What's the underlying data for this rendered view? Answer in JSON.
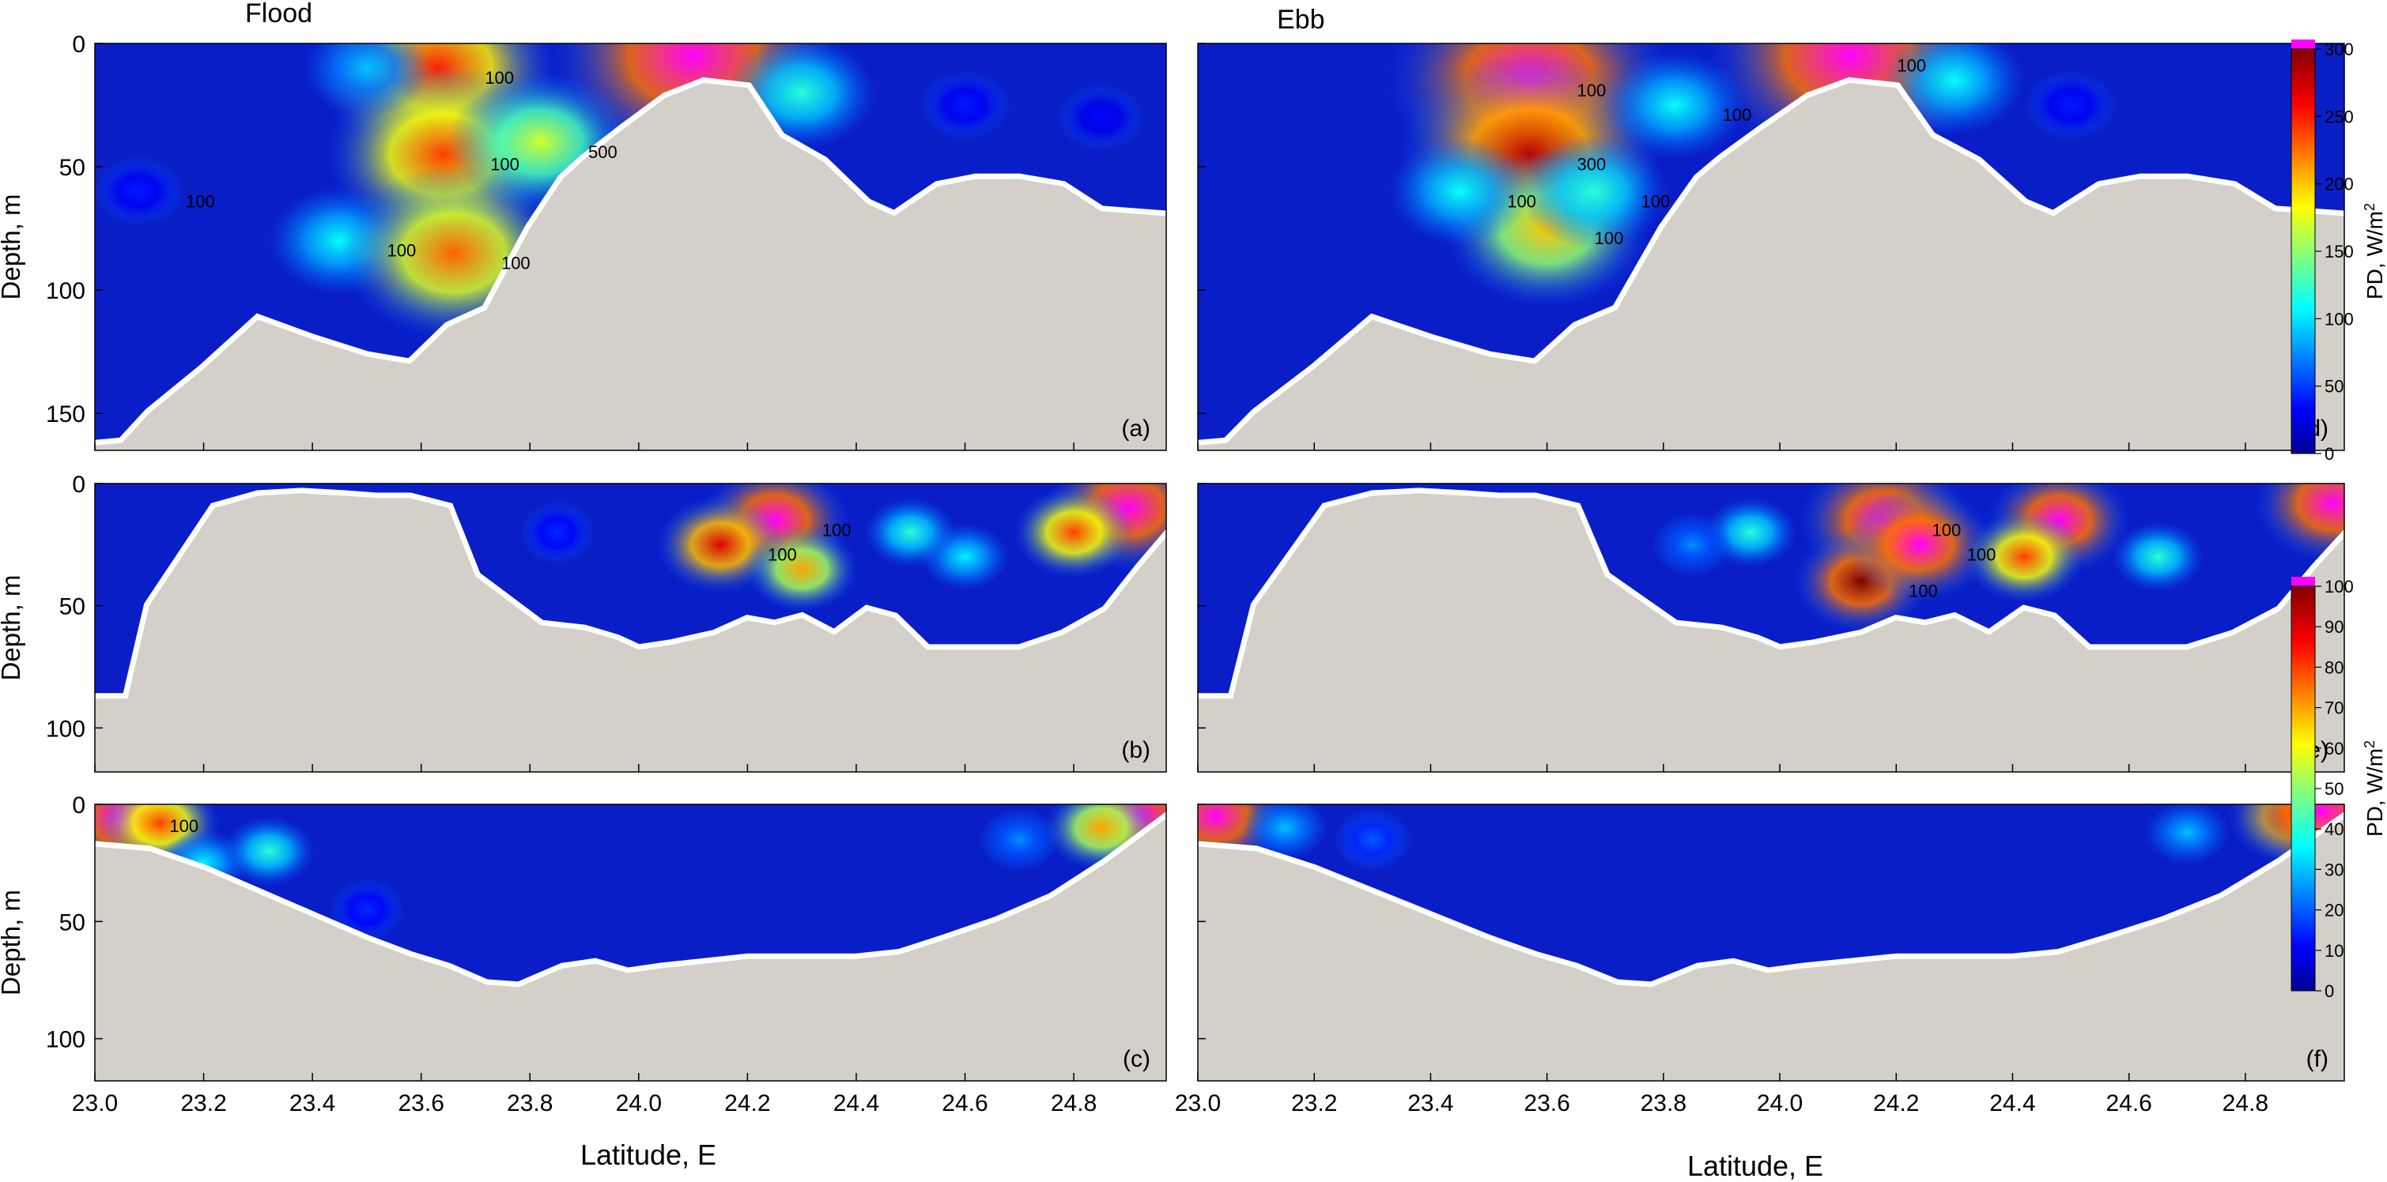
{
  "figure": {
    "col_titles": [
      "Flood",
      "Ebb"
    ],
    "xlabel": "Latitude, E",
    "ylabel": "Depth, m",
    "xticks": [
      "23.0",
      "23.2",
      "23.4",
      "23.6",
      "23.8",
      "24.0",
      "24.2",
      "24.4",
      "24.6",
      "24.8"
    ]
  },
  "chart_data": [
    {
      "type": "heatmap",
      "id": "a",
      "panel_label": "(a)",
      "column": "Flood",
      "xlim": [
        23.0,
        24.97
      ],
      "ylim": [
        165,
        0
      ],
      "yticks": [
        0,
        50,
        100,
        150
      ],
      "colorbar": {
        "label": "PD, W/m2",
        "range": [
          0,
          300
        ],
        "ticks": [
          0,
          50,
          100,
          150,
          200,
          250,
          300
        ],
        "overflow_color": "#ff00ff"
      },
      "contour_labels": [
        "100",
        "100",
        "100",
        "100",
        "100",
        "500"
      ],
      "seabed": [
        [
          23.0,
          163
        ],
        [
          23.05,
          162
        ],
        [
          23.1,
          150
        ],
        [
          23.2,
          132
        ],
        [
          23.3,
          112
        ],
        [
          23.4,
          120
        ],
        [
          23.5,
          127
        ],
        [
          23.58,
          130
        ],
        [
          23.65,
          115
        ],
        [
          23.72,
          108
        ],
        [
          23.8,
          75
        ],
        [
          23.86,
          55
        ],
        [
          23.9,
          47
        ],
        [
          23.97,
          35
        ],
        [
          24.05,
          22
        ],
        [
          24.12,
          16
        ],
        [
          24.2,
          18
        ],
        [
          24.26,
          38
        ],
        [
          24.34,
          48
        ],
        [
          24.42,
          65
        ],
        [
          24.47,
          70
        ],
        [
          24.55,
          58
        ],
        [
          24.62,
          55
        ],
        [
          24.7,
          55
        ],
        [
          24.78,
          58
        ],
        [
          24.85,
          68
        ],
        [
          24.97,
          70
        ]
      ],
      "hotspots": [
        {
          "x": 23.08,
          "y": 60,
          "v": 40
        },
        {
          "x": 23.45,
          "y": 80,
          "v": 110
        },
        {
          "x": 23.63,
          "y": 10,
          "v": 250
        },
        {
          "x": 23.64,
          "y": 45,
          "v": 240
        },
        {
          "x": 23.66,
          "y": 85,
          "v": 230
        },
        {
          "x": 23.82,
          "y": 40,
          "v": 170
        },
        {
          "x": 23.5,
          "y": 10,
          "v": 90
        },
        {
          "x": 24.1,
          "y": 5,
          "v": 340
        },
        {
          "x": 24.3,
          "y": 20,
          "v": 120
        },
        {
          "x": 24.6,
          "y": 25,
          "v": 40
        },
        {
          "x": 24.85,
          "y": 30,
          "v": 35
        }
      ],
      "gaps": [
        {
          "x": 23.1,
          "y": 95,
          "w": 0.04,
          "h": 20
        }
      ]
    },
    {
      "type": "heatmap",
      "id": "b",
      "panel_label": "(b)",
      "column": "Flood",
      "xlim": [
        23.0,
        24.97
      ],
      "ylim": [
        118,
        0
      ],
      "yticks": [
        0,
        50,
        100
      ],
      "colorbar": {
        "label": "PD, W/m2",
        "range": [
          0,
          100
        ],
        "ticks": [
          0,
          10,
          20,
          30,
          40,
          50,
          60,
          70,
          80,
          90,
          100
        ],
        "overflow_color": "#ff00ff"
      },
      "contour_labels": [
        "100",
        "100"
      ],
      "seabed": [
        [
          23.0,
          88
        ],
        [
          23.06,
          88
        ],
        [
          23.1,
          50
        ],
        [
          23.16,
          30
        ],
        [
          23.22,
          10
        ],
        [
          23.3,
          5
        ],
        [
          23.38,
          4
        ],
        [
          23.46,
          5
        ],
        [
          23.52,
          6
        ],
        [
          23.58,
          6
        ],
        [
          23.65,
          10
        ],
        [
          23.7,
          38
        ],
        [
          23.76,
          48
        ],
        [
          23.82,
          58
        ],
        [
          23.9,
          60
        ],
        [
          23.96,
          64
        ],
        [
          24.0,
          68
        ],
        [
          24.06,
          66
        ],
        [
          24.14,
          62
        ],
        [
          24.2,
          56
        ],
        [
          24.25,
          58
        ],
        [
          24.3,
          55
        ],
        [
          24.36,
          62
        ],
        [
          24.42,
          52
        ],
        [
          24.47,
          55
        ],
        [
          24.53,
          68
        ],
        [
          24.6,
          68
        ],
        [
          24.7,
          68
        ],
        [
          24.78,
          62
        ],
        [
          24.86,
          52
        ],
        [
          24.92,
          35
        ],
        [
          24.97,
          22
        ]
      ],
      "hotspots": [
        {
          "x": 24.25,
          "y": 15,
          "v": 120
        },
        {
          "x": 24.15,
          "y": 25,
          "v": 90
        },
        {
          "x": 24.3,
          "y": 35,
          "v": 70
        },
        {
          "x": 24.6,
          "y": 30,
          "v": 35
        },
        {
          "x": 24.9,
          "y": 10,
          "v": 140
        },
        {
          "x": 24.8,
          "y": 20,
          "v": 80
        },
        {
          "x": 23.85,
          "y": 20,
          "v": 15
        },
        {
          "x": 24.5,
          "y": 20,
          "v": 40
        }
      ],
      "gaps": []
    },
    {
      "type": "heatmap",
      "id": "c",
      "panel_label": "(c)",
      "column": "Flood",
      "xlim": [
        23.0,
        24.97
      ],
      "ylim": [
        118,
        0
      ],
      "yticks": [
        0,
        50,
        100
      ],
      "colorbar": {
        "label": "PD, W/m2",
        "range": [
          0,
          100
        ],
        "ticks": [
          0,
          10,
          20,
          30,
          40,
          50,
          60,
          70,
          80,
          90,
          100
        ],
        "overflow_color": "#ff00ff"
      },
      "contour_labels": [
        "100"
      ],
      "seabed": [
        [
          23.0,
          18
        ],
        [
          23.1,
          20
        ],
        [
          23.2,
          28
        ],
        [
          23.3,
          38
        ],
        [
          23.4,
          48
        ],
        [
          23.5,
          58
        ],
        [
          23.58,
          65
        ],
        [
          23.65,
          70
        ],
        [
          23.72,
          77
        ],
        [
          23.78,
          78
        ],
        [
          23.86,
          70
        ],
        [
          23.92,
          68
        ],
        [
          23.98,
          72
        ],
        [
          24.04,
          70
        ],
        [
          24.12,
          68
        ],
        [
          24.2,
          66
        ],
        [
          24.3,
          66
        ],
        [
          24.4,
          66
        ],
        [
          24.48,
          64
        ],
        [
          24.56,
          58
        ],
        [
          24.66,
          50
        ],
        [
          24.76,
          40
        ],
        [
          24.86,
          25
        ],
        [
          24.97,
          6
        ]
      ],
      "hotspots": [
        {
          "x": 23.05,
          "y": 5,
          "v": 130
        },
        {
          "x": 23.12,
          "y": 8,
          "v": 80
        },
        {
          "x": 23.2,
          "y": 25,
          "v": 35
        },
        {
          "x": 23.32,
          "y": 20,
          "v": 40
        },
        {
          "x": 23.5,
          "y": 45,
          "v": 15
        },
        {
          "x": 24.7,
          "y": 15,
          "v": 25
        },
        {
          "x": 24.92,
          "y": 5,
          "v": 110
        },
        {
          "x": 24.85,
          "y": 10,
          "v": 70
        }
      ],
      "gaps": []
    },
    {
      "type": "heatmap",
      "id": "d",
      "panel_label": "(d)",
      "column": "Ebb",
      "xlim": [
        23.0,
        24.97
      ],
      "ylim": [
        165,
        0
      ],
      "yticks": [
        0,
        50,
        100,
        150
      ],
      "colorbar": {
        "label": "PD, W/m2",
        "range": [
          0,
          300
        ],
        "ticks": [
          0,
          50,
          100,
          150,
          200,
          250,
          300
        ],
        "overflow_color": "#ff00ff"
      },
      "contour_labels": [
        "100",
        "300",
        "100",
        "100",
        "100",
        "100",
        "100"
      ],
      "seabed": [
        [
          23.0,
          163
        ],
        [
          23.05,
          162
        ],
        [
          23.1,
          150
        ],
        [
          23.2,
          132
        ],
        [
          23.3,
          112
        ],
        [
          23.4,
          120
        ],
        [
          23.5,
          127
        ],
        [
          23.58,
          130
        ],
        [
          23.65,
          115
        ],
        [
          23.72,
          108
        ],
        [
          23.8,
          75
        ],
        [
          23.86,
          55
        ],
        [
          23.9,
          47
        ],
        [
          23.97,
          35
        ],
        [
          24.05,
          22
        ],
        [
          24.12,
          16
        ],
        [
          24.2,
          18
        ],
        [
          24.26,
          38
        ],
        [
          24.34,
          48
        ],
        [
          24.42,
          65
        ],
        [
          24.47,
          70
        ],
        [
          24.55,
          58
        ],
        [
          24.62,
          55
        ],
        [
          24.7,
          55
        ],
        [
          24.78,
          58
        ],
        [
          24.85,
          68
        ],
        [
          24.97,
          70
        ]
      ],
      "hotspots": [
        {
          "x": 23.57,
          "y": 15,
          "v": 330
        },
        {
          "x": 23.57,
          "y": 45,
          "v": 280
        },
        {
          "x": 23.6,
          "y": 75,
          "v": 200
        },
        {
          "x": 23.45,
          "y": 60,
          "v": 110
        },
        {
          "x": 23.68,
          "y": 60,
          "v": 120
        },
        {
          "x": 24.12,
          "y": 5,
          "v": 350
        },
        {
          "x": 23.82,
          "y": 25,
          "v": 110
        },
        {
          "x": 24.3,
          "y": 15,
          "v": 110
        },
        {
          "x": 24.5,
          "y": 25,
          "v": 40
        }
      ],
      "gaps": []
    },
    {
      "type": "heatmap",
      "id": "e",
      "panel_label": "(e)",
      "column": "Ebb",
      "xlim": [
        23.0,
        24.97
      ],
      "ylim": [
        118,
        0
      ],
      "yticks": [
        0,
        50,
        100
      ],
      "colorbar": {
        "label": "PD, W/m2",
        "range": [
          0,
          100
        ],
        "ticks": [
          0,
          10,
          20,
          30,
          40,
          50,
          60,
          70,
          80,
          90,
          100
        ],
        "overflow_color": "#ff00ff"
      },
      "contour_labels": [
        "100",
        "100",
        "100"
      ],
      "seabed": [
        [
          23.0,
          88
        ],
        [
          23.06,
          88
        ],
        [
          23.1,
          50
        ],
        [
          23.16,
          30
        ],
        [
          23.22,
          10
        ],
        [
          23.3,
          5
        ],
        [
          23.38,
          4
        ],
        [
          23.46,
          5
        ],
        [
          23.52,
          6
        ],
        [
          23.58,
          6
        ],
        [
          23.65,
          10
        ],
        [
          23.7,
          38
        ],
        [
          23.76,
          48
        ],
        [
          23.82,
          58
        ],
        [
          23.9,
          60
        ],
        [
          23.96,
          64
        ],
        [
          24.0,
          68
        ],
        [
          24.06,
          66
        ],
        [
          24.14,
          62
        ],
        [
          24.2,
          56
        ],
        [
          24.25,
          58
        ],
        [
          24.3,
          55
        ],
        [
          24.36,
          62
        ],
        [
          24.42,
          52
        ],
        [
          24.47,
          55
        ],
        [
          24.53,
          68
        ],
        [
          24.6,
          68
        ],
        [
          24.7,
          68
        ],
        [
          24.78,
          62
        ],
        [
          24.86,
          52
        ],
        [
          24.92,
          35
        ],
        [
          24.97,
          22
        ]
      ],
      "hotspots": [
        {
          "x": 24.18,
          "y": 15,
          "v": 150
        },
        {
          "x": 24.14,
          "y": 40,
          "v": 100
        },
        {
          "x": 24.24,
          "y": 25,
          "v": 120
        },
        {
          "x": 24.48,
          "y": 15,
          "v": 110
        },
        {
          "x": 24.42,
          "y": 30,
          "v": 80
        },
        {
          "x": 24.65,
          "y": 30,
          "v": 40
        },
        {
          "x": 24.95,
          "y": 8,
          "v": 130
        },
        {
          "x": 23.95,
          "y": 20,
          "v": 40
        },
        {
          "x": 23.85,
          "y": 25,
          "v": 25
        }
      ],
      "gaps": []
    },
    {
      "type": "heatmap",
      "id": "f",
      "panel_label": "(f)",
      "column": "Ebb",
      "xlim": [
        23.0,
        24.97
      ],
      "ylim": [
        118,
        0
      ],
      "yticks": [
        0,
        50,
        100
      ],
      "colorbar": {
        "label": "PD, W/m2",
        "range": [
          0,
          100
        ],
        "ticks": [
          0,
          10,
          20,
          30,
          40,
          50,
          60,
          70,
          80,
          90,
          100
        ],
        "overflow_color": "#ff00ff"
      },
      "contour_labels": [],
      "seabed": [
        [
          23.0,
          18
        ],
        [
          23.1,
          20
        ],
        [
          23.2,
          28
        ],
        [
          23.3,
          38
        ],
        [
          23.4,
          48
        ],
        [
          23.5,
          58
        ],
        [
          23.58,
          65
        ],
        [
          23.65,
          70
        ],
        [
          23.72,
          77
        ],
        [
          23.78,
          78
        ],
        [
          23.86,
          70
        ],
        [
          23.92,
          68
        ],
        [
          23.98,
          72
        ],
        [
          24.04,
          70
        ],
        [
          24.12,
          68
        ],
        [
          24.2,
          66
        ],
        [
          24.3,
          66
        ],
        [
          24.4,
          66
        ],
        [
          24.48,
          64
        ],
        [
          24.56,
          58
        ],
        [
          24.66,
          50
        ],
        [
          24.76,
          40
        ],
        [
          24.86,
          25
        ],
        [
          24.97,
          6
        ]
      ],
      "hotspots": [
        {
          "x": 23.03,
          "y": 5,
          "v": 110
        },
        {
          "x": 23.15,
          "y": 10,
          "v": 30
        },
        {
          "x": 23.3,
          "y": 15,
          "v": 20
        },
        {
          "x": 24.7,
          "y": 12,
          "v": 30
        },
        {
          "x": 24.88,
          "y": 5,
          "v": 90
        },
        {
          "x": 24.93,
          "y": 3,
          "v": 130
        }
      ],
      "gaps": []
    }
  ]
}
